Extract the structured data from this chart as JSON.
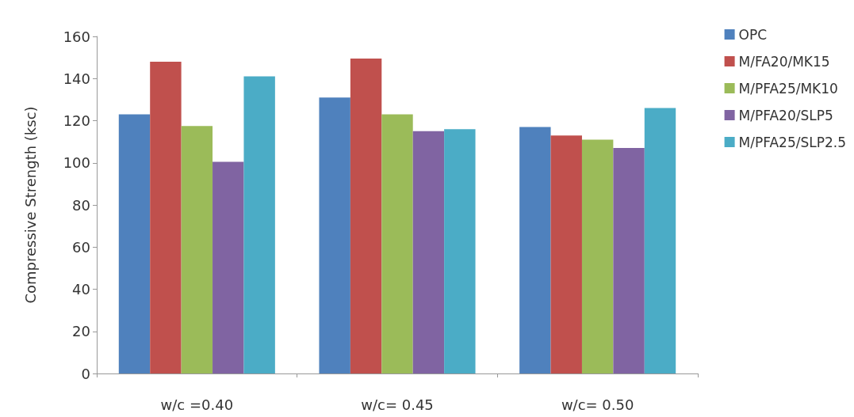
{
  "chart_data": {
    "type": "bar",
    "ylabel": "Compressive Strength (ksc)",
    "categories": [
      "w/c =0.40",
      "w/c= 0.45",
      "w/c= 0.50"
    ],
    "series": [
      {
        "name": "OPC",
        "color": "#4f81bd",
        "values": [
          123,
          131,
          117
        ]
      },
      {
        "name": "M/FA20/MK15",
        "color": "#c0504d",
        "values": [
          148,
          149.5,
          113
        ]
      },
      {
        "name": "M/PFA25/MK10",
        "color": "#9bbb59",
        "values": [
          117.5,
          123,
          111
        ]
      },
      {
        "name": "M/PFA20/SLP5",
        "color": "#8064a2",
        "values": [
          100.5,
          115,
          107
        ]
      },
      {
        "name": "M/PFA25/SLP2.5",
        "color": "#4bacc6",
        "values": [
          141,
          116,
          126
        ]
      }
    ],
    "ylim": [
      0,
      160
    ],
    "yticks": [
      0,
      20,
      40,
      60,
      80,
      100,
      120,
      140,
      160
    ],
    "grid": false,
    "legend": "top right"
  }
}
